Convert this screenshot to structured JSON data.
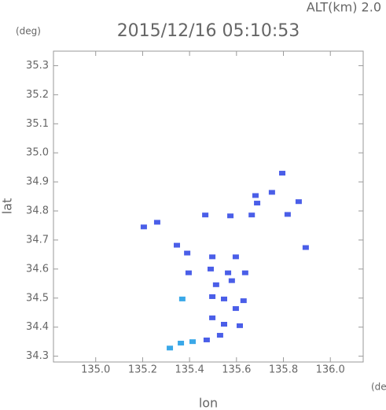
{
  "chart_data": {
    "type": "scatter",
    "title": "2015/12/16 05:10:53",
    "subtitle": "ALT(km) 2.0",
    "y_unit": "(deg)",
    "x_unit": "(deg)",
    "xlabel": "lon",
    "ylabel": "lat",
    "xlim": [
      134.82,
      136.14
    ],
    "ylim": [
      34.28,
      35.35
    ],
    "xticks": [
      {
        "value": 135.0,
        "label": "135.0"
      },
      135.2,
      135.4,
      135.6,
      135.8,
      {
        "value": 136.0,
        "label": "136.0"
      }
    ],
    "yticks": [
      34.3,
      34.4,
      34.5,
      34.6,
      34.7,
      34.8,
      34.9,
      {
        "value": 35.0,
        "label": "35.0"
      },
      35.1,
      35.2,
      35.3
    ],
    "grid": false,
    "series": [
      {
        "color": "#4a5ee8",
        "x": [
          135.795,
          135.751,
          135.681,
          135.865,
          135.818,
          135.688,
          135.665,
          135.574,
          135.467,
          135.262,
          135.205,
          135.346,
          135.895,
          135.39,
          135.497,
          135.597,
          135.396,
          135.49,
          135.564,
          135.637,
          135.513,
          135.58,
          135.497,
          135.547,
          135.63,
          135.597,
          135.497,
          135.547,
          135.614,
          135.53,
          135.473
        ],
        "y": [
          34.93,
          34.864,
          34.853,
          34.832,
          34.788,
          34.827,
          34.786,
          34.783,
          34.786,
          34.761,
          34.745,
          34.682,
          34.674,
          34.655,
          34.642,
          34.642,
          34.587,
          34.6,
          34.587,
          34.587,
          34.546,
          34.56,
          34.505,
          34.497,
          34.491,
          34.464,
          34.432,
          34.41,
          34.405,
          34.372,
          34.356
        ]
      },
      {
        "color": "#3aa8e8",
        "x": [
          135.369,
          135.413,
          135.363,
          135.316
        ],
        "y": [
          34.497,
          34.35,
          34.345,
          34.328
        ]
      }
    ]
  }
}
